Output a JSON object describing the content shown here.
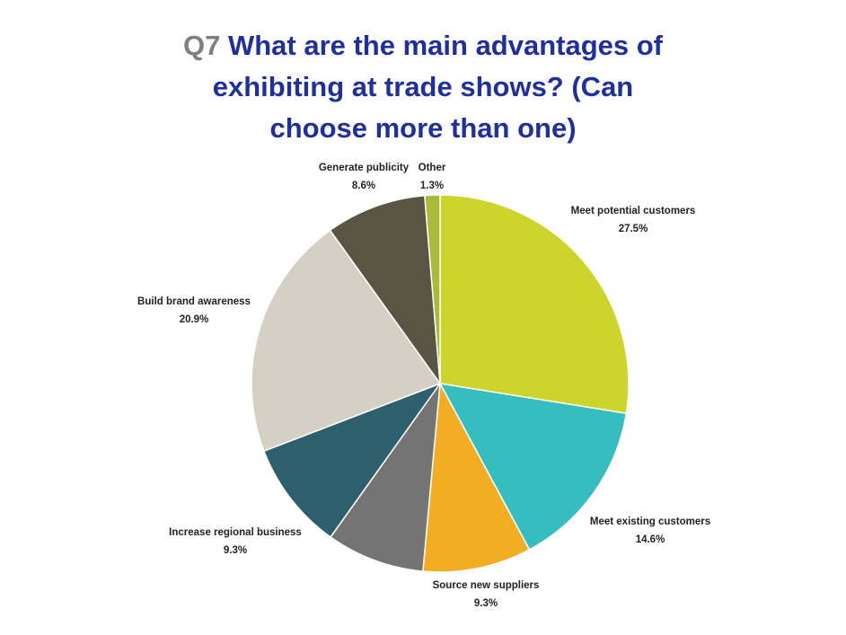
{
  "title": {
    "question_number": "Q7",
    "line1": "What are the main advantages of",
    "line2": "exhibiting at trade shows? (Can",
    "line3": "choose more than one)"
  },
  "chart_data": {
    "type": "pie",
    "title": "Q7 What are the main advantages of exhibiting at trade shows? (Can choose more than one)",
    "start": "12 o'clock",
    "direction": "clockwise",
    "slices": [
      {
        "label": "Meet potential customers",
        "value": 27.5,
        "display": "27.5%",
        "color": "#cdd42c"
      },
      {
        "label": "Meet existing customers",
        "value": 14.6,
        "display": "14.6%",
        "color": "#35bdbf"
      },
      {
        "label": "Source new suppliers",
        "value": 9.3,
        "display": "9.3%",
        "color": "#f3ad22"
      },
      {
        "label": "",
        "value": 8.4,
        "display": "",
        "color": "#747474"
      },
      {
        "label": "Increase regional business",
        "value": 9.3,
        "display": "9.3%",
        "color": "#2e5f6c"
      },
      {
        "label": "Build brand awareness",
        "value": 20.9,
        "display": "20.9%",
        "color": "#d4d0c3"
      },
      {
        "label": "Generate publicity",
        "value": 8.6,
        "display": "8.6%",
        "color": "#595444"
      },
      {
        "label": "Other",
        "value": 1.3,
        "display": "1.3%",
        "color": "#a9bb3a"
      }
    ]
  }
}
